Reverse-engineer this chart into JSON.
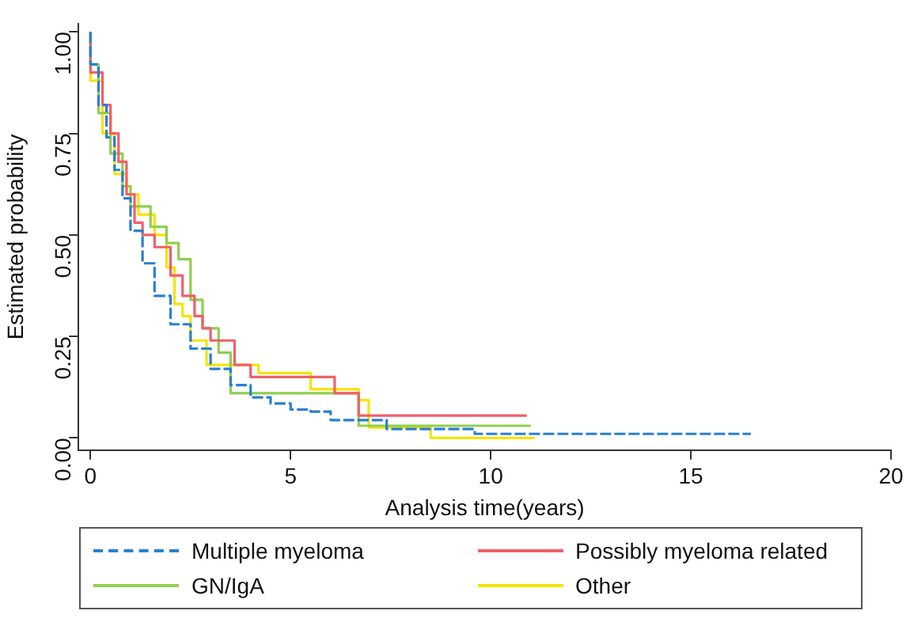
{
  "chart_data": {
    "type": "step",
    "xlabel": "Analysis time(years)",
    "ylabel": "Estimated probability",
    "xlim": [
      -0.3,
      20
    ],
    "xticks": [
      0,
      5,
      10,
      15,
      20
    ],
    "ylim": [
      -0.03,
      1.02
    ],
    "yticks": [
      {
        "value": 0,
        "label": "0.00"
      },
      {
        "value": 0.25,
        "label": "0.25"
      },
      {
        "value": 0.5,
        "label": "0.50"
      },
      {
        "value": 0.75,
        "label": "0.75"
      },
      {
        "value": 1,
        "label": "1.00"
      }
    ],
    "grid": false,
    "legend": "bottom",
    "series": [
      {
        "name": "Multiple myeloma",
        "color": "#2a7fd4",
        "line_style": "dashed",
        "x": [
          0,
          0.2,
          0.4,
          0.6,
          0.8,
          1,
          1.3,
          1.6,
          2,
          2.5,
          3,
          3.5,
          4,
          4.5,
          5,
          5.5,
          6,
          7.4,
          9.6,
          11,
          16.5
        ],
        "values": [
          1,
          0.92,
          0.82,
          0.74,
          0.66,
          0.59,
          0.51,
          0.43,
          0.35,
          0.28,
          0.22,
          0.17,
          0.13,
          0.1,
          0.085,
          0.07,
          0.065,
          0.044,
          0.022,
          0.01,
          0.01
        ]
      },
      {
        "name": "Possibly myeloma related",
        "color": "#f0606a",
        "line_style": "solid",
        "x": [
          0,
          0.3,
          0.5,
          0.7,
          0.9,
          1.1,
          1.3,
          1.6,
          2,
          2.3,
          2.6,
          2.8,
          3,
          3.6,
          4,
          6.1,
          6.7,
          7.8,
          10.9
        ],
        "values": [
          1,
          0.9,
          0.82,
          0.75,
          0.68,
          0.6,
          0.53,
          0.5,
          0.47,
          0.4,
          0.35,
          0.3,
          0.27,
          0.24,
          0.18,
          0.15,
          0.11,
          0.055,
          0.055
        ]
      },
      {
        "name": "GN/IgA",
        "color": "#8fcf50",
        "line_style": "solid",
        "x": [
          0,
          0.2,
          0.5,
          0.8,
          1,
          1.5,
          1.9,
          2.2,
          2.5,
          2.8,
          3.2,
          3.5,
          6.7,
          8.6,
          11
        ],
        "values": [
          1,
          0.92,
          0.8,
          0.7,
          0.62,
          0.57,
          0.52,
          0.48,
          0.44,
          0.34,
          0.27,
          0.21,
          0.11,
          0.03,
          0.03
        ]
      },
      {
        "name": "Other",
        "color": "#f5e400",
        "line_style": "solid",
        "x": [
          0,
          0.3,
          0.6,
          0.9,
          1.2,
          1.6,
          1.9,
          2.1,
          2.3,
          2.5,
          2.9,
          4.2,
          5.5,
          6.7,
          6.95,
          8.5,
          11.1
        ],
        "values": [
          1,
          0.88,
          0.75,
          0.65,
          0.6,
          0.55,
          0.5,
          0.42,
          0.33,
          0.3,
          0.24,
          0.18,
          0.16,
          0.12,
          0.093,
          0.026,
          0
        ]
      }
    ]
  }
}
